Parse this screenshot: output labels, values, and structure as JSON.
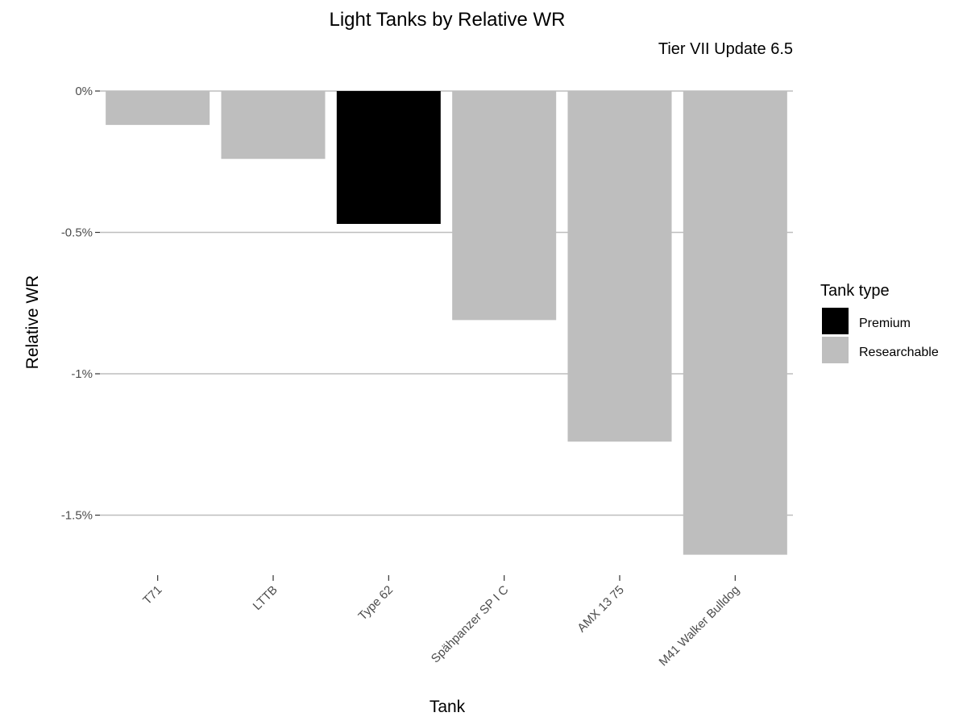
{
  "chart_data": {
    "type": "bar",
    "title": "Light Tanks by Relative WR",
    "subtitle": "Tier VII Update 6.5",
    "xlabel": "Tank",
    "ylabel": "Relative WR",
    "categories": [
      "T71",
      "LTTB",
      "Type 62",
      "Spähpanzer SP I C",
      "AMX 13 75",
      "M41 Walker Bulldog"
    ],
    "values": [
      -0.12,
      -0.24,
      -0.47,
      -0.81,
      -1.24,
      -1.64
    ],
    "tank_type": [
      "Researchable",
      "Researchable",
      "Premium",
      "Researchable",
      "Researchable",
      "Researchable"
    ],
    "ylim": [
      -1.68,
      0
    ],
    "yticks": [
      0,
      -0.5,
      -1,
      -1.5
    ],
    "ytick_labels": [
      "0%",
      "-0.5%",
      "-1%",
      "-1.5%"
    ],
    "grid": "horizontal major",
    "legend": {
      "title": "Tank type",
      "position": "right",
      "entries": [
        {
          "label": "Premium",
          "color": "#000000"
        },
        {
          "label": "Researchable",
          "color": "#bebebe"
        }
      ]
    },
    "colors": {
      "Premium": "#000000",
      "Researchable": "#bebebe",
      "grid": "#bebebe"
    }
  }
}
